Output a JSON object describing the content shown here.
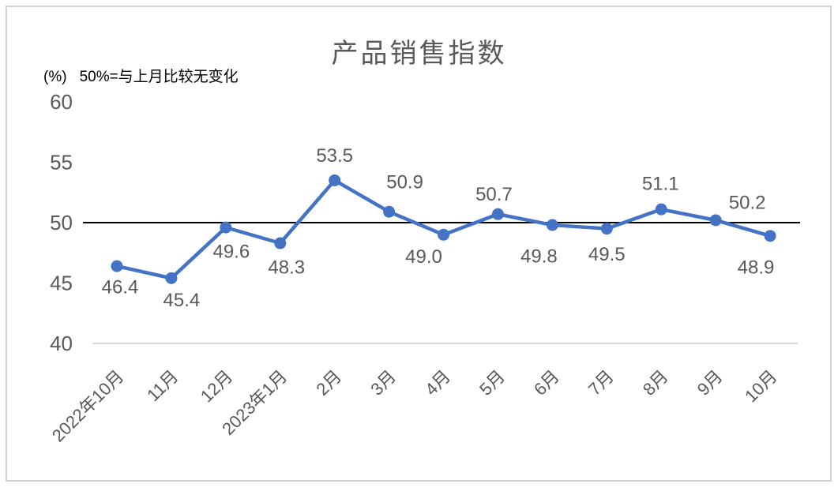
{
  "window": {
    "background": "#ffffff",
    "border_color": "#d2d2d2"
  },
  "chart_data": {
    "type": "line",
    "title": "产品销售指数",
    "unit_label": "(%)",
    "note": "50%=与上月比较无变化",
    "categories": [
      "2022年10月",
      "11月",
      "12月",
      "2023年1月",
      "2月",
      "3月",
      "4月",
      "5月",
      "6月",
      "7月",
      "8月",
      "9月",
      "10月"
    ],
    "series": [
      {
        "name": "产品销售指数",
        "values": [
          46.4,
          45.4,
          49.6,
          48.3,
          53.5,
          50.9,
          49.0,
          50.7,
          49.8,
          49.5,
          51.1,
          50.2,
          48.9
        ],
        "color": "#4472C4"
      }
    ],
    "data_labels": [
      "46.4",
      "45.4",
      "49.6",
      "48.3",
      "53.5",
      "50.9",
      "49.0",
      "50.7",
      "49.8",
      "49.5",
      "51.1",
      "50.2",
      "48.9"
    ],
    "reference_line": {
      "value": 50,
      "color": "#000000"
    },
    "y_ticks": [
      60,
      55,
      50,
      45,
      40
    ],
    "ylim": [
      40,
      60
    ],
    "grid": false,
    "legend": "none",
    "axis_color": "#595959",
    "label_color": "#595959",
    "baseline_color": "#d9d9d9",
    "label_layout": {
      "side": [
        "below",
        "below",
        "below",
        "below",
        "above",
        "above",
        "below",
        "above",
        "below",
        "below",
        "above",
        "above",
        "below"
      ],
      "dx": [
        4,
        13,
        7,
        8,
        0,
        20,
        -25,
        -5,
        -17,
        0,
        -1,
        40,
        -18
      ],
      "dy": [
        26,
        27,
        30,
        30,
        -32,
        -38,
        27,
        -26,
        39,
        32,
        -33,
        -23,
        39
      ]
    }
  }
}
